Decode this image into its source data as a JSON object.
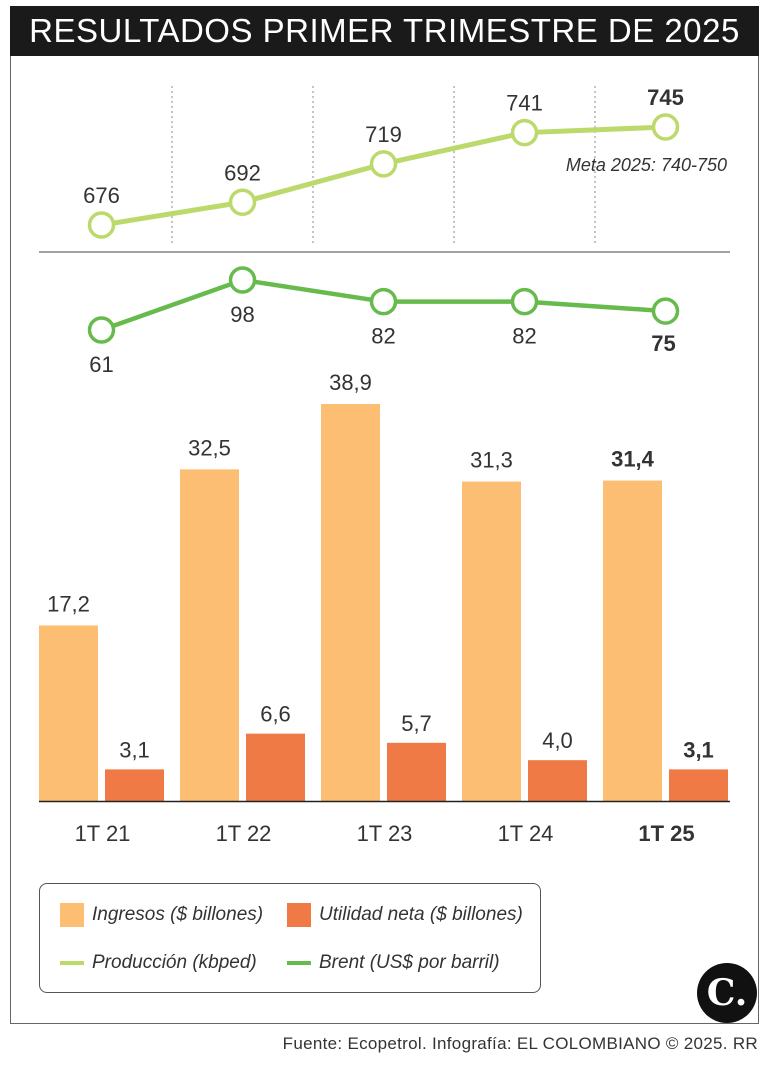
{
  "title": "RESULTADOS PRIMER TRIMESTRE DE 2025",
  "meta_note": "Meta 2025: 740-750",
  "legend": {
    "ingresos": "Ingresos ($ billones)",
    "utilidad": "Utilidad neta ($ billones)",
    "produccion": "Producción (kbped)",
    "brent": "Brent (US$ por barril)"
  },
  "source": "Fuente: Ecopetrol. Infografía: EL COLOMBIANO © 2025. RR",
  "logo_text": "C.",
  "colors": {
    "ingresos": "#fcbe73",
    "utilidad": "#f07a45",
    "produccion": "#bcd96b",
    "brent": "#66bb4c"
  },
  "chart_data": {
    "type": "bar",
    "categories": [
      "1T 21",
      "1T 22",
      "1T 23",
      "1T 24",
      "1T 25"
    ],
    "highlight_category": "1T 25",
    "series": [
      {
        "key": "ingresos",
        "type": "bar",
        "values": [
          17.2,
          32.5,
          38.9,
          31.3,
          31.4
        ],
        "labels": [
          "17,2",
          "32,5",
          "38,9",
          "31,3",
          "31,4"
        ]
      },
      {
        "key": "utilidad",
        "type": "bar",
        "values": [
          3.1,
          6.6,
          5.7,
          4.0,
          3.1
        ],
        "labels": [
          "3,1",
          "6,6",
          "5,7",
          "4,0",
          "3,1"
        ]
      },
      {
        "key": "produccion",
        "type": "line",
        "values": [
          676,
          692,
          719,
          741,
          745
        ],
        "labels": [
          "676",
          "692",
          "719",
          "741",
          "745"
        ]
      },
      {
        "key": "brent",
        "type": "line",
        "values": [
          61,
          98,
          82,
          82,
          75
        ],
        "labels": [
          "61",
          "98",
          "82",
          "82",
          "75"
        ]
      }
    ]
  }
}
